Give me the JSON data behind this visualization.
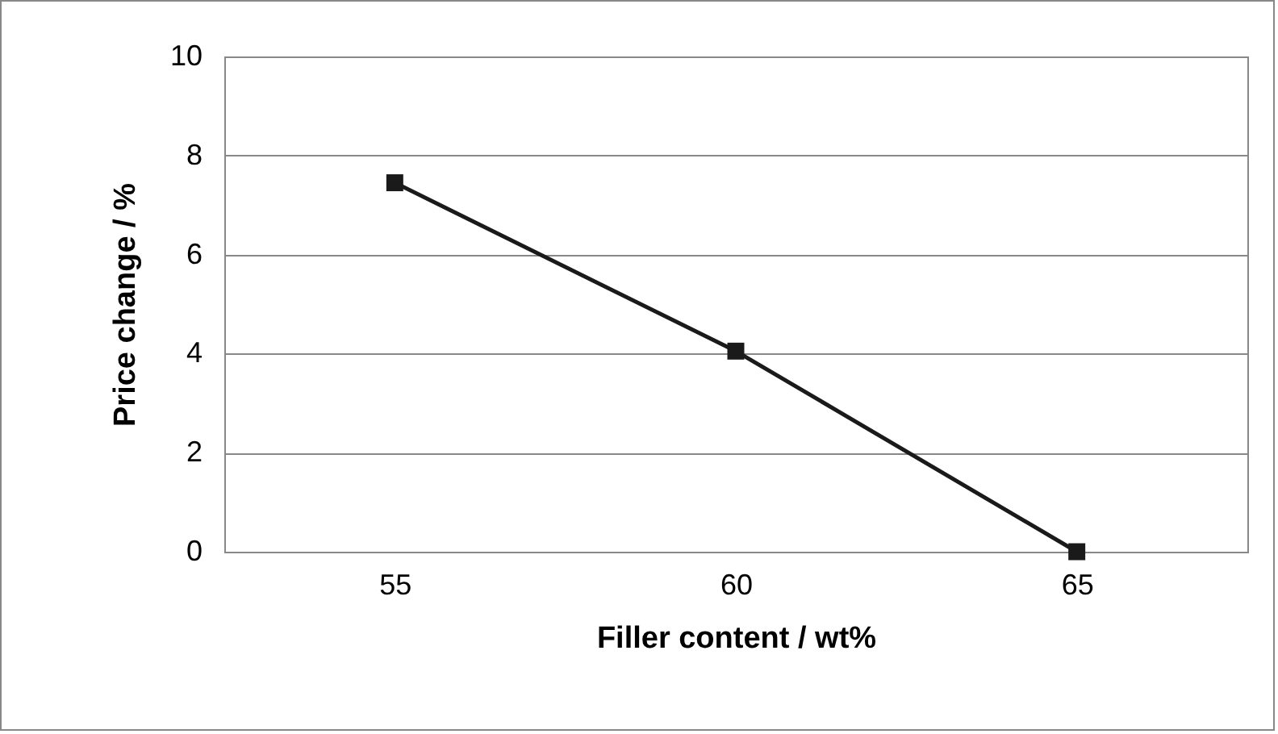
{
  "chart_data": {
    "type": "line",
    "xlabel": "Filler content / wt%",
    "ylabel": "Price change / %",
    "categories": [
      "55",
      "60",
      "65"
    ],
    "series": [
      {
        "color": "#1a1a1a",
        "values": [
          7.45,
          4.05,
          0
        ]
      }
    ],
    "ylim": [
      0,
      10
    ],
    "yticks": [
      0,
      2,
      4,
      6,
      8,
      10
    ],
    "grid": "y",
    "marker": "square",
    "line_style": "solid",
    "legend": false
  }
}
